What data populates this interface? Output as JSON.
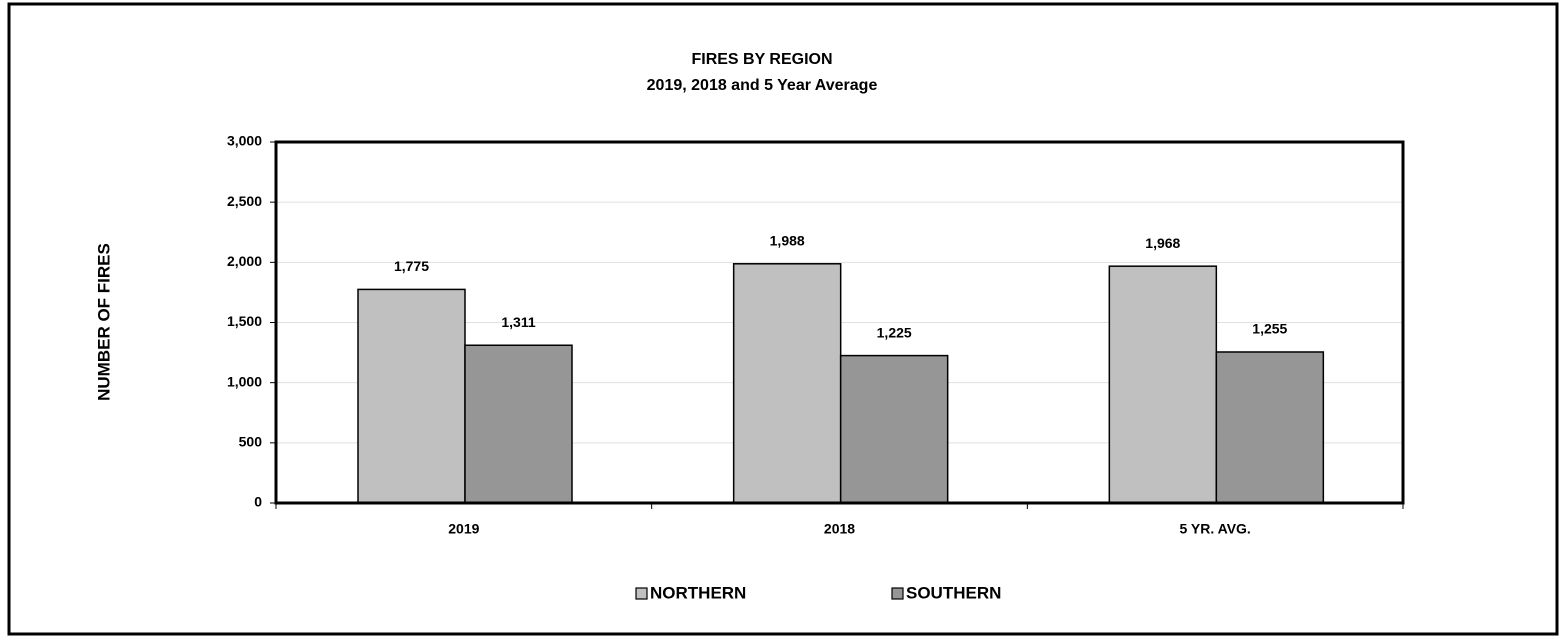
{
  "chart_data": {
    "type": "bar",
    "title": "FIRES BY REGION",
    "subtitle": "2019, 2018 and 5 Year Average",
    "y_label": "NUMBER OF FIRES",
    "categories": [
      "2019",
      "2018",
      "5 YR. AVG."
    ],
    "series": [
      {
        "name": "NORTHERN",
        "color": "#c0c0c0",
        "values": [
          1775,
          1988,
          1968
        ],
        "value_labels": [
          "1,775",
          "1,988",
          "1,968"
        ]
      },
      {
        "name": "SOUTHERN",
        "color": "#969696",
        "values": [
          1311,
          1225,
          1255
        ],
        "value_labels": [
          "1,311",
          "1,225",
          "1,255"
        ]
      }
    ],
    "ylim": [
      0,
      3000
    ],
    "yticks": [
      0,
      500,
      {
        "value": 1000,
        "label": "1,000"
      },
      {
        "value": 1500,
        "label": "1,500"
      },
      {
        "value": 2000,
        "label": "2,000"
      },
      {
        "value": 2500,
        "label": "2,500"
      },
      {
        "value": 3000,
        "label": "3,000"
      }
    ],
    "grid": true,
    "legend": "bottom"
  }
}
